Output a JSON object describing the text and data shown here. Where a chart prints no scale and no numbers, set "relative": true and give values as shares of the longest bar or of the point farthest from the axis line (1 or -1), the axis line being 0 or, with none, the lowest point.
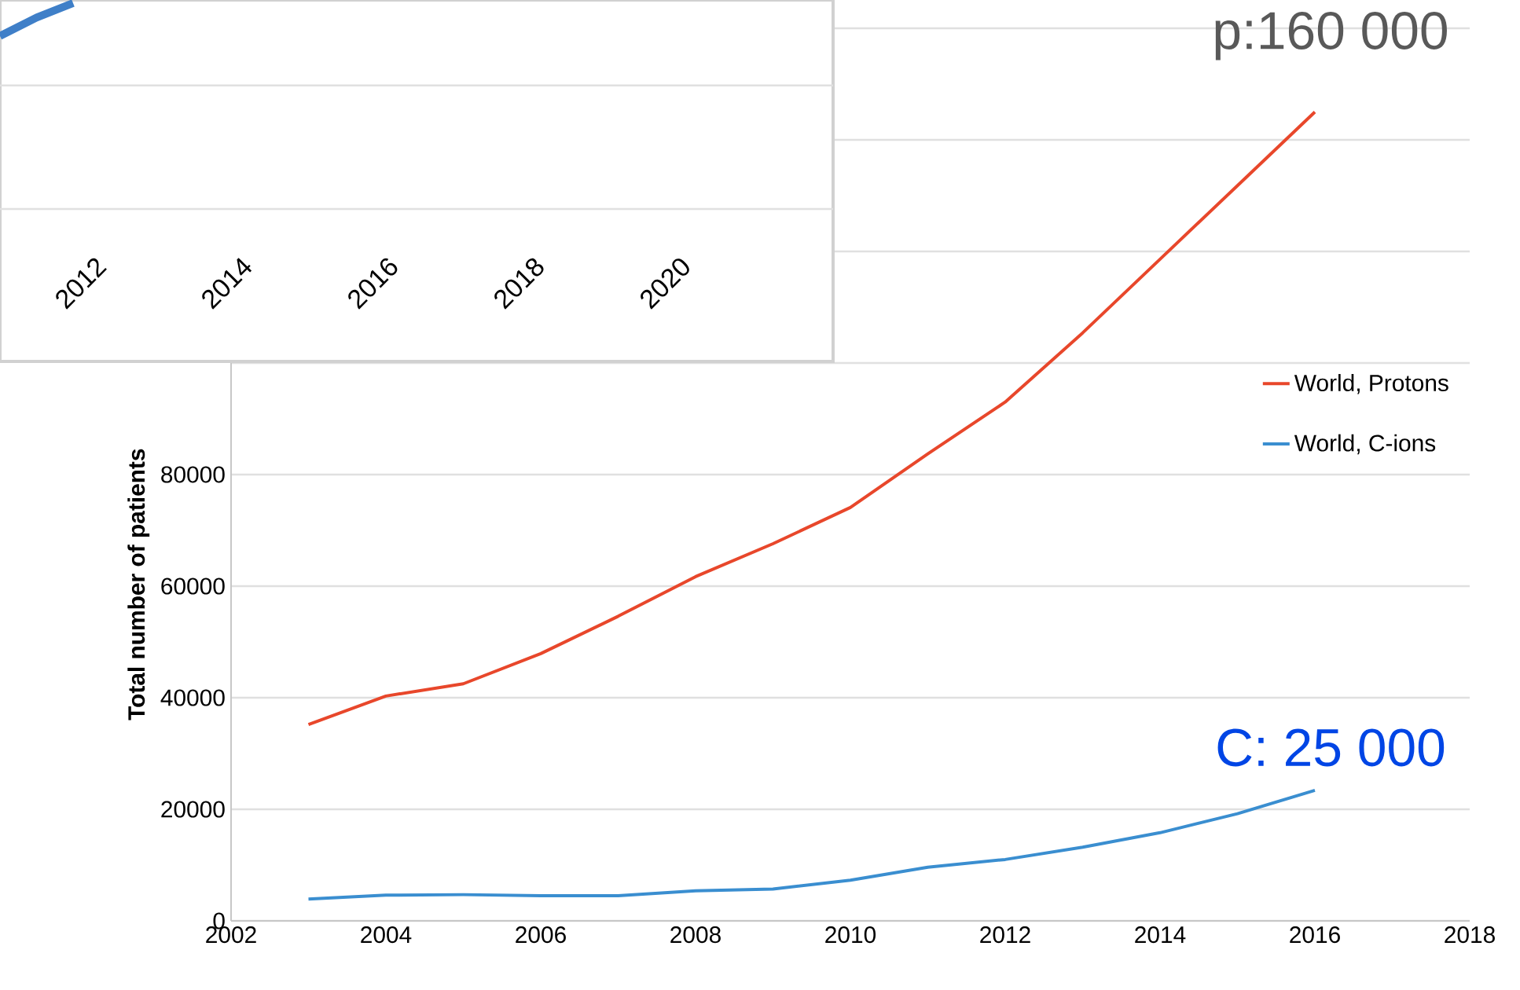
{
  "chart_data": [
    {
      "type": "line",
      "ylabel": "Total number of patients",
      "x": [
        2003,
        2004,
        2005,
        2006,
        2007,
        2008,
        2009,
        2010,
        2011,
        2012,
        2013,
        2014,
        2015,
        2016
      ],
      "series": [
        {
          "name": "World, Protons",
          "color": "#e8472b",
          "values": [
            35200,
            40300,
            42500,
            47900,
            54600,
            61700,
            67600,
            74100,
            83700,
            93000,
            105400,
            118600,
            131800,
            145000
          ]
        },
        {
          "name": "World, C-ions",
          "color": "#3a8ed0",
          "values": [
            3900,
            4600,
            4700,
            4500,
            4500,
            5400,
            5700,
            7300,
            9600,
            11000,
            13200,
            15800,
            19200,
            23400
          ]
        }
      ],
      "xlim": [
        2002,
        2018
      ],
      "xticks": [
        2002,
        2004,
        2006,
        2008,
        2010,
        2012,
        2014,
        2016,
        2018
      ],
      "ylim": [
        0,
        160000
      ],
      "yticks": [
        0,
        20000,
        40000,
        60000,
        80000,
        {
          "value": 100000,
          "label": null
        },
        {
          "value": 120000,
          "label": null
        },
        {
          "value": 140000,
          "label": null
        },
        {
          "value": 160000,
          "label": null
        }
      ],
      "grid": "y",
      "legend": "right",
      "annotations": [
        "p:160 000",
        "C: 25 000"
      ]
    },
    {
      "type": "line",
      "relative": true,
      "xlim": [
        2010.9,
        2022.3
      ],
      "xticks": [
        2012,
        2014,
        2016,
        2018,
        2020
      ],
      "ref_lines": [
        {
          "axis": "y",
          "value": 0.6,
          "color": "#e0e0e0"
        }
      ],
      "series": [
        {
          "color": "#3f7fc8",
          "x": [
            2010.9,
            2011.4,
            2011.9
          ],
          "values": [
            0.84,
            0.93,
            1
          ]
        }
      ]
    }
  ]
}
